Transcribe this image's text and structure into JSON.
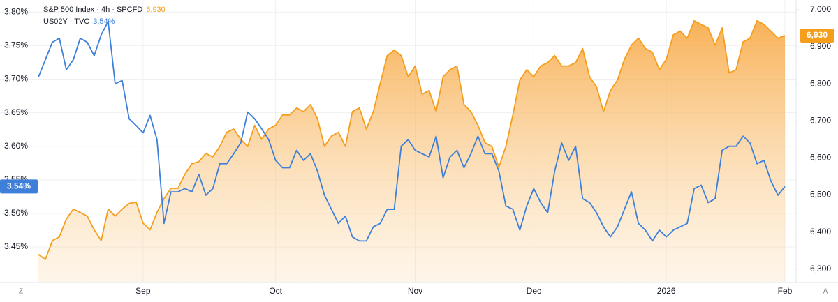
{
  "chart_data": {
    "type": "line",
    "categories": [
      null,
      null,
      null,
      null,
      null,
      null,
      null,
      null,
      null,
      null,
      null,
      null,
      null,
      null,
      null,
      "Sep",
      null,
      null,
      null,
      null,
      null,
      null,
      null,
      null,
      null,
      null,
      null,
      null,
      null,
      null,
      null,
      null,
      null,
      null,
      "Oct",
      null,
      null,
      null,
      null,
      null,
      null,
      null,
      null,
      null,
      null,
      null,
      null,
      null,
      null,
      null,
      null,
      null,
      null,
      null,
      "Nov",
      null,
      null,
      null,
      null,
      null,
      null,
      null,
      null,
      null,
      null,
      null,
      null,
      null,
      null,
      null,
      null,
      "Dec",
      null,
      null,
      null,
      null,
      null,
      null,
      null,
      null,
      null,
      null,
      null,
      null,
      null,
      null,
      null,
      null,
      null,
      null,
      "2026",
      null,
      null,
      null,
      null,
      null,
      null,
      null,
      null,
      null,
      null,
      null,
      null,
      null,
      null,
      null,
      null,
      "Feb"
    ],
    "series": [
      {
        "name": "S&P 500 Index · 4h · SPCFD",
        "legend_value": "6,930",
        "color": "#f59e1b",
        "axis": "y2",
        "area": true,
        "values": [
          6340,
          6326,
          6377,
          6387,
          6435,
          6462,
          6453,
          6443,
          6406,
          6377,
          6462,
          6443,
          6462,
          6477,
          6481,
          6424,
          6406,
          6453,
          6490,
          6518,
          6518,
          6556,
          6584,
          6590,
          6612,
          6603,
          6631,
          6669,
          6678,
          6650,
          6631,
          6688,
          6650,
          6678,
          6688,
          6716,
          6716,
          6735,
          6725,
          6744,
          6706,
          6631,
          6659,
          6669,
          6631,
          6725,
          6735,
          6678,
          6725,
          6801,
          6876,
          6891,
          6876,
          6819,
          6848,
          6772,
          6782,
          6725,
          6819,
          6838,
          6848,
          6744,
          6725,
          6688,
          6641,
          6631,
          6575,
          6631,
          6716,
          6810,
          6838,
          6819,
          6848,
          6857,
          6876,
          6848,
          6848,
          6857,
          6895,
          6819,
          6791,
          6725,
          6782,
          6810,
          6866,
          6904,
          6923,
          6895,
          6885,
          6838,
          6866,
          6932,
          6942,
          6923,
          6970,
          6960,
          6951,
          6904,
          6951,
          6829,
          6838,
          6913,
          6923,
          6970,
          6960,
          6942,
          6923,
          6930
        ]
      },
      {
        "name": "US02Y · TVC",
        "legend_value": "3.54%",
        "color": "#3d7fd9",
        "axis": "y",
        "values": [
          3.703,
          3.729,
          3.755,
          3.761,
          3.714,
          3.729,
          3.761,
          3.755,
          3.735,
          3.766,
          3.786,
          3.693,
          3.698,
          3.641,
          3.631,
          3.62,
          3.646,
          3.61,
          3.485,
          3.532,
          3.532,
          3.537,
          3.532,
          3.558,
          3.527,
          3.537,
          3.574,
          3.574,
          3.589,
          3.605,
          3.651,
          3.641,
          3.626,
          3.61,
          3.579,
          3.568,
          3.568,
          3.594,
          3.579,
          3.589,
          3.563,
          3.527,
          3.506,
          3.485,
          3.496,
          3.465,
          3.459,
          3.459,
          3.48,
          3.485,
          3.506,
          3.506,
          3.6,
          3.61,
          3.594,
          3.589,
          3.584,
          3.615,
          3.553,
          3.584,
          3.594,
          3.568,
          3.589,
          3.615,
          3.589,
          3.589,
          3.563,
          3.511,
          3.506,
          3.475,
          3.511,
          3.537,
          3.516,
          3.501,
          3.563,
          3.605,
          3.579,
          3.6,
          3.522,
          3.516,
          3.501,
          3.48,
          3.465,
          3.48,
          3.506,
          3.532,
          3.485,
          3.475,
          3.459,
          3.475,
          3.465,
          3.475,
          3.48,
          3.485,
          3.537,
          3.542,
          3.516,
          3.522,
          3.594,
          3.6,
          3.6,
          3.615,
          3.605,
          3.574,
          3.579,
          3.548,
          3.527,
          3.54
        ]
      }
    ],
    "ylim": [
      3.397,
      3.818
    ],
    "yticks": [
      {
        "value": 3.45,
        "label": "3.45%"
      },
      {
        "value": 3.5,
        "label": "3.50%"
      },
      {
        "value": 3.55,
        "label": "3.55%"
      },
      {
        "value": 3.6,
        "label": "3.60%"
      },
      {
        "value": 3.65,
        "label": "3.65%"
      },
      {
        "value": 3.7,
        "label": "3.70%"
      },
      {
        "value": 3.75,
        "label": "3.75%"
      },
      {
        "value": 3.8,
        "label": "3.80%"
      }
    ],
    "y2lim": [
      6264,
      7026
    ],
    "y2ticks": [
      {
        "value": 6300,
        "label": "6,300"
      },
      {
        "value": 6400,
        "label": "6,400"
      },
      {
        "value": 6500,
        "label": "6,500"
      },
      {
        "value": 6600,
        "label": "6,600"
      },
      {
        "value": 6700,
        "label": "6,700"
      },
      {
        "value": 6800,
        "label": "6,800"
      },
      {
        "value": 6900,
        "label": "6,900"
      },
      {
        "value": 7000,
        "label": "7,000"
      }
    ],
    "grid": true,
    "footer": {
      "left": "Z",
      "right": "A"
    }
  }
}
